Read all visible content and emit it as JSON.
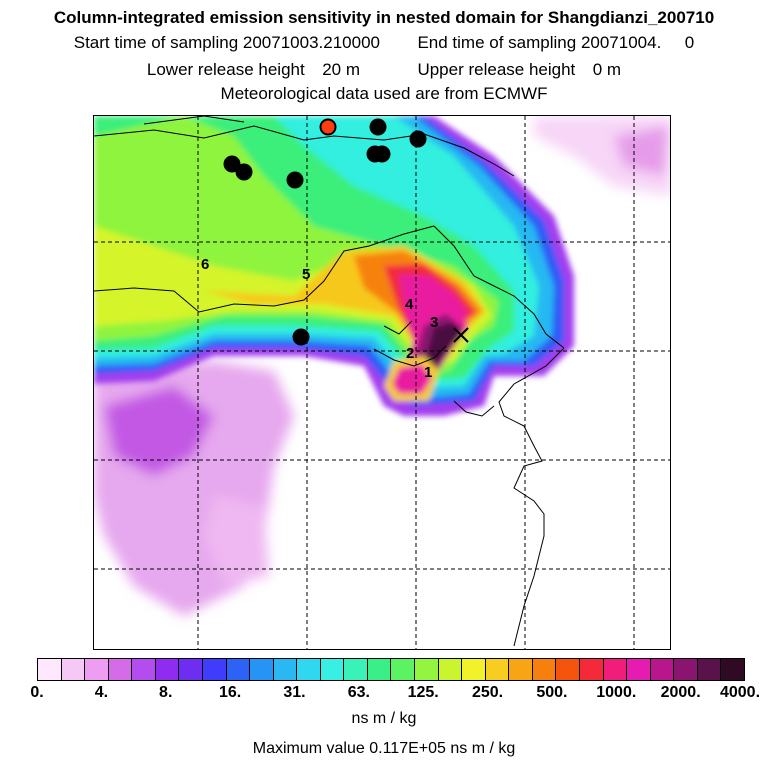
{
  "title": {
    "line1": "Column-integrated emission sensitivity in nested domain for Shangdianzi_200710",
    "line2_start_label": "Start time of sampling",
    "line2_start_value": "20071003.210000",
    "line2_end_label": "End time of sampling",
    "line2_end_value": "20071004.",
    "line2_end_suffix": "0",
    "line3_lower_label": "Lower release height",
    "line3_lower_value": "20 m",
    "line3_upper_label": "Upper release height",
    "line3_upper_value": "0 m",
    "line4": "Meteorological data used are from ECMWF"
  },
  "map": {
    "trajectory_labels": [
      "1",
      "2",
      "3",
      "4",
      "5",
      "6"
    ],
    "station_marker": "release-location-cross",
    "colors": {
      "land_outline": "#000000",
      "grid": "#000000",
      "highlight_point": "#ff3b10",
      "point": "#000000"
    }
  },
  "colorbar": {
    "colors": [
      "#fde8fd",
      "#f6c8f6",
      "#ef9df3",
      "#d66be8",
      "#b34df0",
      "#8f2cf0",
      "#6e2ef2",
      "#3f3dfb",
      "#2c63f6",
      "#2694f4",
      "#2ab8f2",
      "#2fd8ef",
      "#37f0e3",
      "#39f2b8",
      "#3bef88",
      "#5df262",
      "#93f53f",
      "#c9f42e",
      "#f2f22a",
      "#f7cd20",
      "#f7a514",
      "#f77f0e",
      "#f5540c",
      "#f42a3a",
      "#f01e7a",
      "#e51caf",
      "#b8168d",
      "#8a1570",
      "#5a124a",
      "#300a25"
    ],
    "tick_labels": [
      "0.",
      "4.",
      "8.",
      "16.",
      "31.",
      "63.",
      "125.",
      "250.",
      "500.",
      "1000.",
      "2000.",
      "4000."
    ],
    "units": "ns m / kg",
    "max_label": "Maximum value",
    "max_value": "0.117E+05 ns m / kg"
  }
}
